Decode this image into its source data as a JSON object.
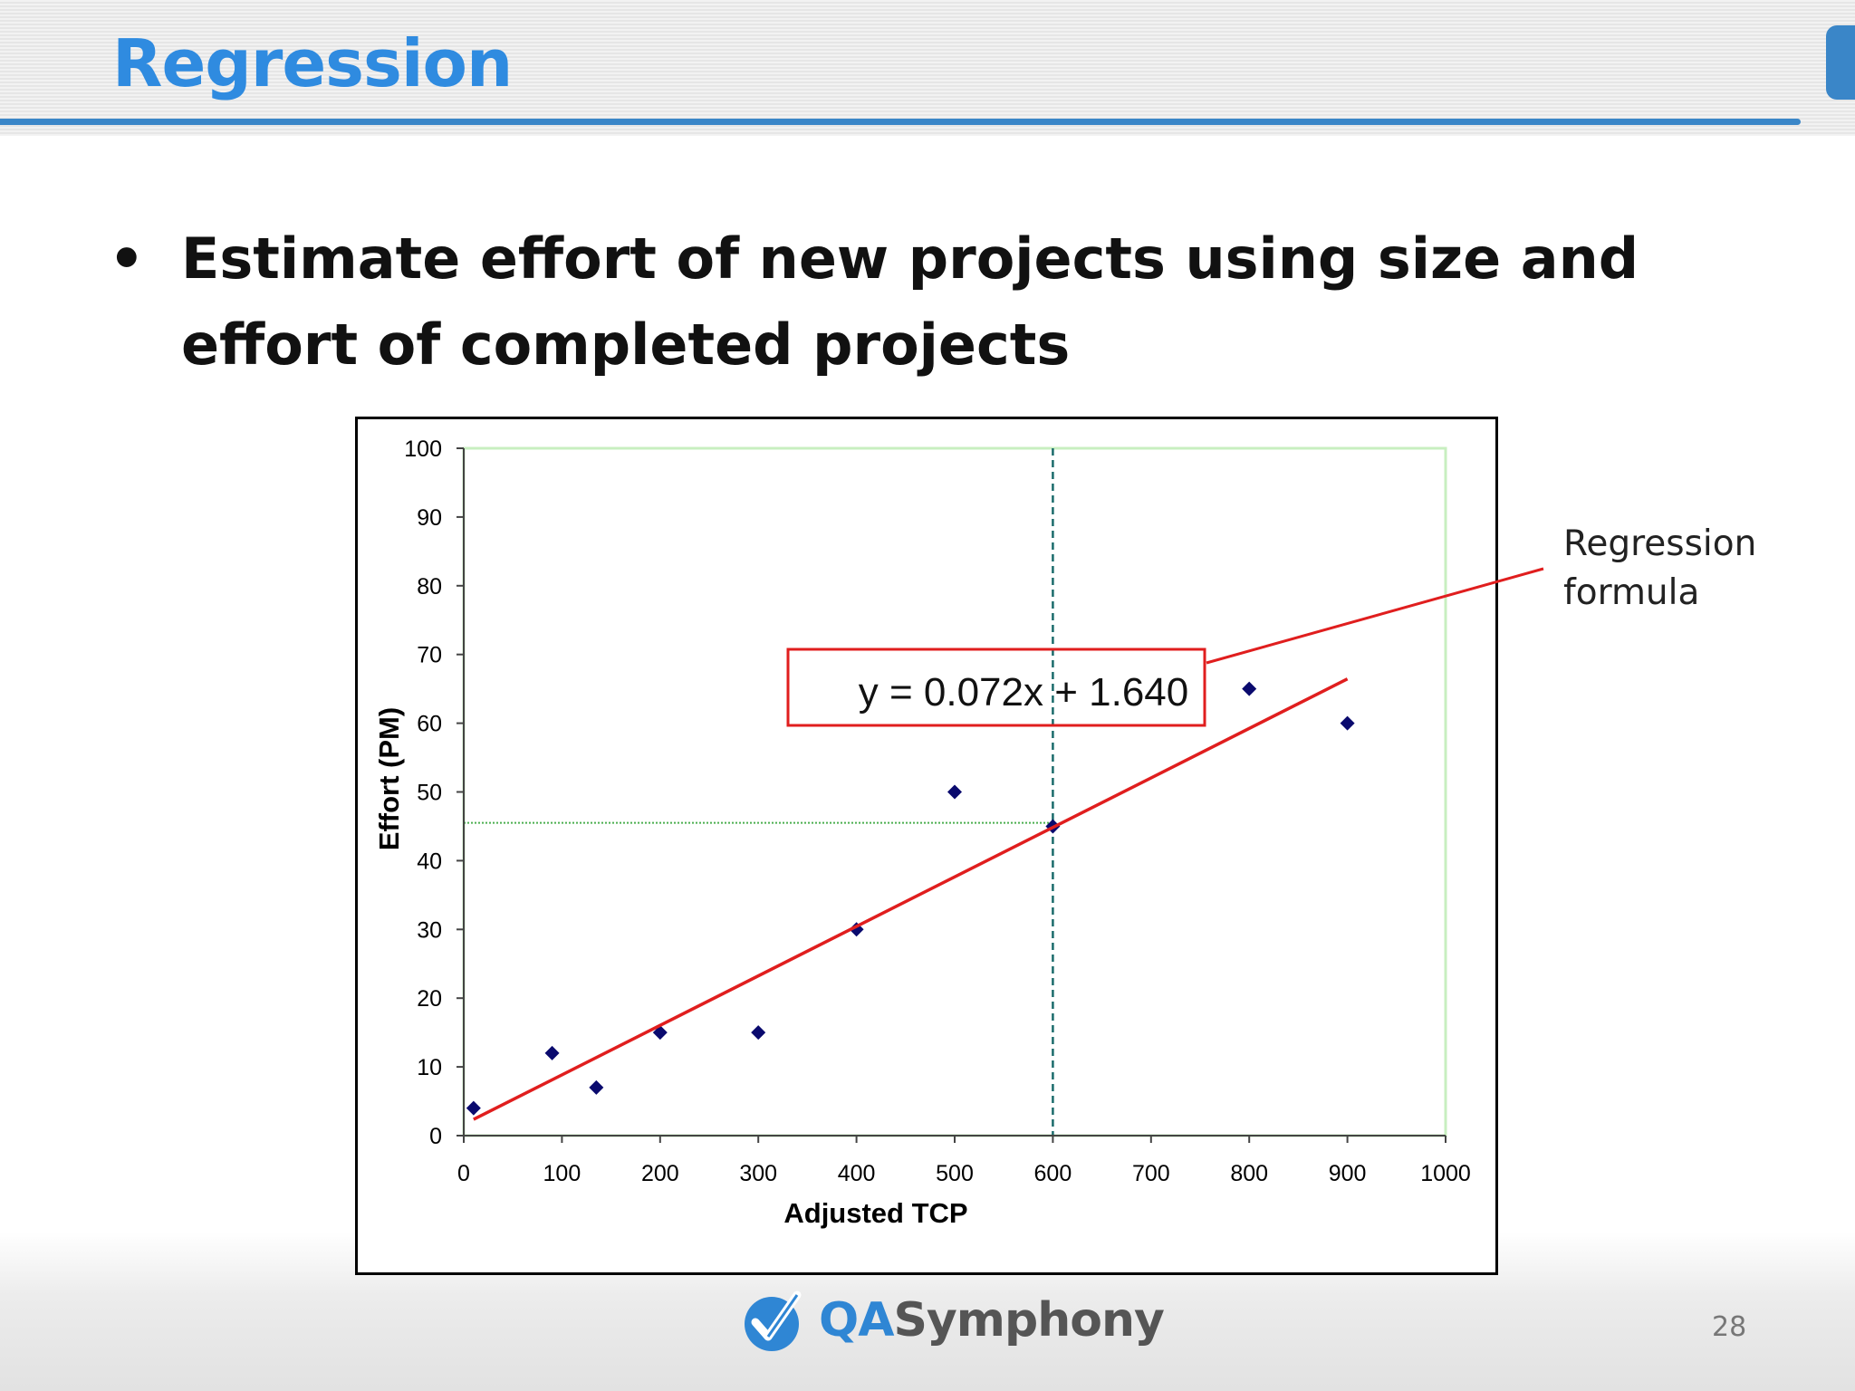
{
  "slide": {
    "title": "Regression",
    "bullet": "Estimate effort of new projects using size and effort of completed projects",
    "callout": {
      "line1": "Regression",
      "line2": "formula"
    },
    "logo": {
      "qa": "QA",
      "rest": "Symphony"
    },
    "page_number": "28"
  },
  "chart_data": {
    "type": "scatter",
    "title": "",
    "xlabel": "Adjusted TCP",
    "ylabel": "Effort (PM)",
    "xlim": [
      0,
      1000
    ],
    "ylim": [
      0,
      100
    ],
    "x_ticks": [
      0,
      100,
      200,
      300,
      400,
      500,
      600,
      700,
      800,
      900,
      1000
    ],
    "y_ticks": [
      0,
      10,
      20,
      30,
      40,
      50,
      60,
      70,
      80,
      90,
      100
    ],
    "grid": false,
    "legend": "none",
    "points": [
      {
        "x": 10,
        "y": 4
      },
      {
        "x": 90,
        "y": 12
      },
      {
        "x": 135,
        "y": 7
      },
      {
        "x": 200,
        "y": 15
      },
      {
        "x": 300,
        "y": 15
      },
      {
        "x": 400,
        "y": 30
      },
      {
        "x": 500,
        "y": 50
      },
      {
        "x": 600,
        "y": 45
      },
      {
        "x": 800,
        "y": 65
      },
      {
        "x": 900,
        "y": 60
      }
    ],
    "regression": {
      "equation": "y = 0.072x + 1.640",
      "slope": 0.072,
      "intercept": 1.64,
      "x_range": [
        10,
        900
      ]
    },
    "reference_lines": {
      "vertical_x": 600,
      "horizontal_y": 45.5
    },
    "colors": {
      "points": "#0a0a6e",
      "regression_line": "#e01e1e",
      "vertical_ref": "#1a6b6b",
      "horizontal_ref": "#4caf50",
      "plot_border": "#c8efc0",
      "annotation_box": "#e01e1e"
    }
  }
}
